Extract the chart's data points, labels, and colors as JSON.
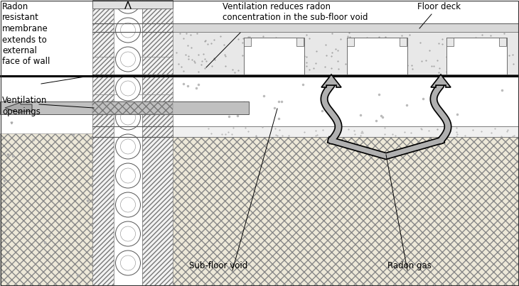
{
  "bg": "#ffffff",
  "lc": "#000000",
  "gray_arrow": "#aaaaaa",
  "dgray": "#555555",
  "lgray": "#cccccc",
  "vent_gray": "#bbbbbb",
  "concrete_fill": "#e8e8e8",
  "ground_fill": "#ede8d8",
  "hatch_lc": "#888888",
  "labels": {
    "radon_mem": "Radon\nresistant\nmembrane\nextends to\nexternal\nface of wall",
    "vent_open": "Ventilation\nopenings",
    "vent_reduce": "Ventilation reduces radon\nconcentration in the sub-floor void",
    "floor_deck": "Floor deck",
    "sub_floor": "Sub-floor void",
    "radon_gas": "Radon gas"
  },
  "fs": 8.5
}
